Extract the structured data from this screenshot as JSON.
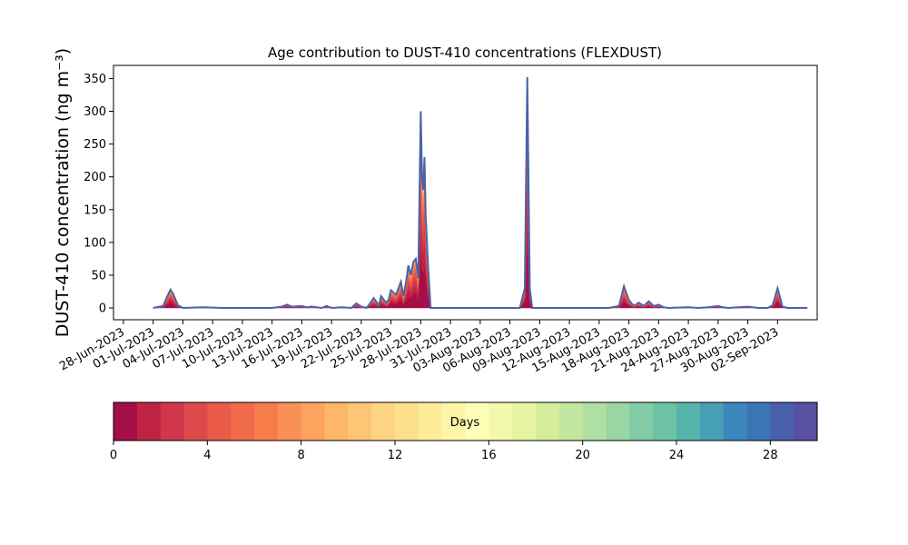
{
  "chart_data": {
    "type": "area",
    "title": "Age contribution to DUST-410 concentrations (FLEXDUST)",
    "ylabel": "DUST-410 concentration (ng m⁻³)",
    "xlabel": "",
    "ylim": [
      -18,
      370
    ],
    "xlim": [
      "2023-06-27",
      "2023-09-06"
    ],
    "grid": false,
    "y_ticks": [
      0,
      50,
      100,
      150,
      200,
      250,
      300,
      350
    ],
    "x_ticks": [
      "28-Jun-2023",
      "01-Jul-2023",
      "04-Jul-2023",
      "07-Jul-2023",
      "10-Jul-2023",
      "13-Jul-2023",
      "16-Jul-2023",
      "19-Jul-2023",
      "22-Jul-2023",
      "25-Jul-2023",
      "28-Jul-2023",
      "31-Jul-2023",
      "03-Aug-2023",
      "06-Aug-2023",
      "09-Aug-2023",
      "12-Aug-2023",
      "15-Aug-2023",
      "18-Aug-2023",
      "21-Aug-2023",
      "24-Aug-2023",
      "27-Aug-2023",
      "30-Aug-2023",
      "02-Sep-2023"
    ],
    "x_tick_dates": [
      "2023-06-28",
      "2023-07-01",
      "2023-07-04",
      "2023-07-07",
      "2023-07-10",
      "2023-07-13",
      "2023-07-16",
      "2023-07-19",
      "2023-07-22",
      "2023-07-25",
      "2023-07-28",
      "2023-07-31",
      "2023-08-03",
      "2023-08-06",
      "2023-08-09",
      "2023-08-12",
      "2023-08-15",
      "2023-08-18",
      "2023-08-21",
      "2023-08-24",
      "2023-08-27",
      "2023-08-30",
      "2023-09-02"
    ],
    "total_series": {
      "name": "",
      "x": [
        "2023-07-01",
        "2023-07-02",
        "2023-07-02 12:00",
        "2023-07-02 18:00",
        "2023-07-03",
        "2023-07-03 12:00",
        "2023-07-04",
        "2023-07-06",
        "2023-07-08",
        "2023-07-13",
        "2023-07-14",
        "2023-07-14 12:00",
        "2023-07-15",
        "2023-07-16",
        "2023-07-16 12:00",
        "2023-07-17",
        "2023-07-18",
        "2023-07-18 12:00",
        "2023-07-19",
        "2023-07-20",
        "2023-07-21",
        "2023-07-21 12:00",
        "2023-07-22",
        "2023-07-22 12:00",
        "2023-07-22 18:00",
        "2023-07-23 06:00",
        "2023-07-23 12:00",
        "2023-07-23 18:00",
        "2023-07-24",
        "2023-07-24 12:00",
        "2023-07-24 18:00",
        "2023-07-25",
        "2023-07-25 12:00",
        "2023-07-26",
        "2023-07-26 06:00",
        "2023-07-26 12:00",
        "2023-07-26 18:00",
        "2023-07-27",
        "2023-07-27 06:00",
        "2023-07-27 12:00",
        "2023-07-27 18:00",
        "2023-07-28 00:00",
        "2023-07-28 03:00",
        "2023-07-28 06:00",
        "2023-07-28 09:00",
        "2023-07-28 12:00",
        "2023-07-28 18:00",
        "2023-07-29",
        "2023-07-29 03:00",
        "2023-07-29 06:00",
        "2023-07-29 09:00",
        "2023-07-29 12:00",
        "2023-07-29 18:00",
        "2023-07-30",
        "2023-08-02",
        "2023-08-06",
        "2023-08-07",
        "2023-08-07 12:00",
        "2023-08-07 18:00",
        "2023-08-08",
        "2023-08-08 06:00",
        "2023-08-08 12:00",
        "2023-08-09",
        "2023-08-13",
        "2023-08-15",
        "2023-08-16",
        "2023-08-17",
        "2023-08-17 12:00",
        "2023-08-18",
        "2023-08-18 12:00",
        "2023-08-19",
        "2023-08-19 12:00",
        "2023-08-20",
        "2023-08-20 12:00",
        "2023-08-21",
        "2023-08-21 12:00",
        "2023-08-22",
        "2023-08-24",
        "2023-08-25",
        "2023-08-26",
        "2023-08-27",
        "2023-08-27 12:00",
        "2023-08-28",
        "2023-08-30",
        "2023-08-31",
        "2023-09-01",
        "2023-09-01 12:00",
        "2023-09-02",
        "2023-09-02 12:00",
        "2023-09-03",
        "2023-09-05"
      ],
      "values": [
        0,
        3,
        20,
        28,
        22,
        4,
        0,
        1,
        0,
        0,
        2,
        5,
        2,
        3,
        1,
        2,
        0,
        3,
        0,
        1,
        0,
        7,
        2,
        0,
        4,
        15,
        10,
        3,
        18,
        8,
        12,
        27,
        20,
        40,
        18,
        38,
        65,
        50,
        70,
        75,
        45,
        300,
        200,
        180,
        230,
        140,
        60,
        0,
        0,
        0,
        0,
        0,
        0,
        0,
        0,
        0,
        0,
        30,
        352,
        30,
        0,
        0,
        0,
        0,
        0,
        0,
        3,
        33,
        12,
        3,
        8,
        3,
        10,
        3,
        5,
        1,
        0,
        1,
        0,
        1,
        3,
        1,
        0,
        2,
        0,
        0,
        4,
        30,
        2,
        0,
        0
      ]
    },
    "age_bands": {
      "unit": "Days",
      "min": 0,
      "max": 30,
      "bins": 30,
      "ticks": [
        0,
        4,
        8,
        12,
        16,
        20,
        24,
        28
      ],
      "colors": [
        "#a50f48",
        "#be2344",
        "#d0364c",
        "#dd4a4c",
        "#e95a49",
        "#f26b4a",
        "#f67c4a",
        "#f99057",
        "#fba35f",
        "#fdb768",
        "#fdc575",
        "#fdd582",
        "#fee08b",
        "#feeb98",
        "#fff5a9",
        "#fefeb9",
        "#f2f9ad",
        "#e5f4a0",
        "#d5ed9b",
        "#c3e69f",
        "#b0dfa2",
        "#9ad5a4",
        "#83cba6",
        "#6dc2a6",
        "#57b4aa",
        "#479fb3",
        "#3c88bc",
        "#3b75b5",
        "#4860ab",
        "#5a50a1"
      ]
    },
    "layer_fractions": [
      0.3,
      0.15,
      0.12,
      0.1,
      0.08,
      0.07,
      0.06,
      0.04,
      0.03,
      0.02,
      0.01,
      0.01,
      0.005,
      0.005
    ],
    "outline_color": "#4a63a6"
  }
}
